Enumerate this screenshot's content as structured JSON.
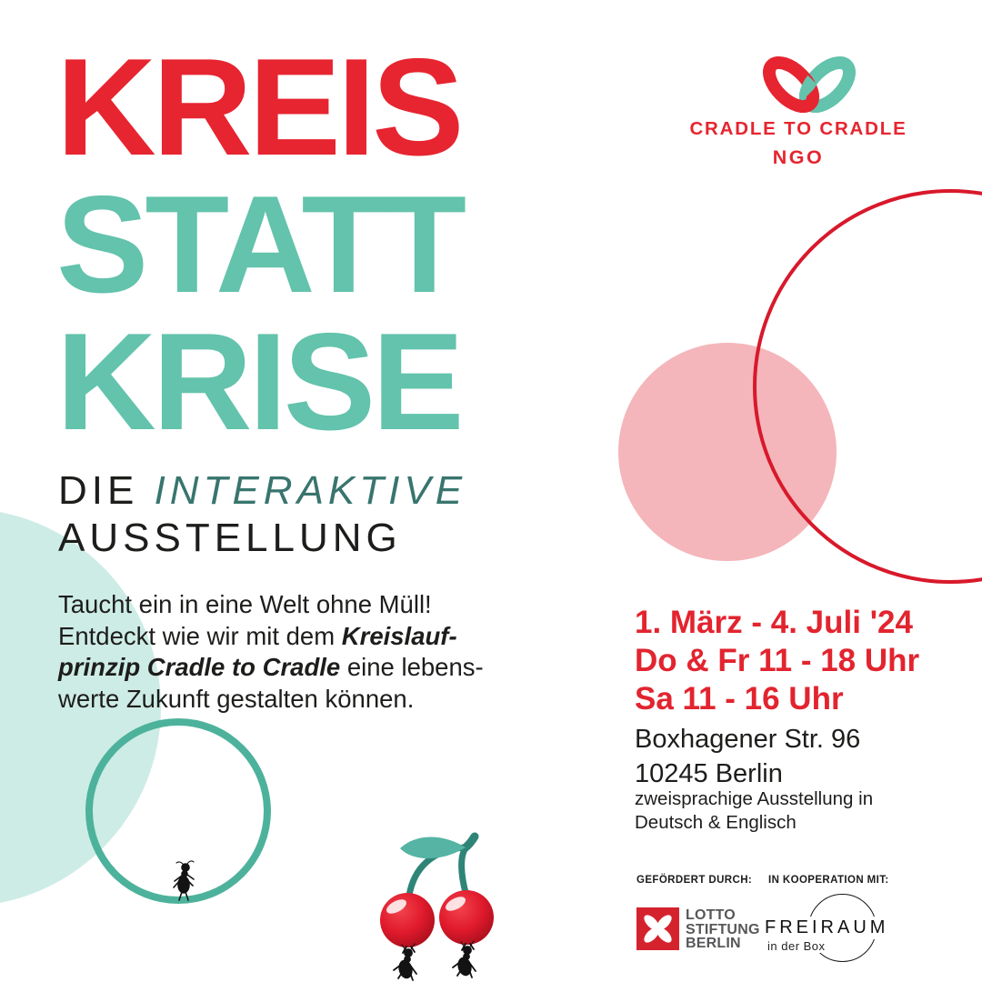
{
  "colors": {
    "red": "#e62530",
    "red-line": "#d8192b",
    "red-date": "#e2242f",
    "teal": "#63c3ac",
    "teal-dark": "#38756e",
    "teal-ring": "#4db29b",
    "mint": "#cdece5",
    "pink": "#f4b6ba",
    "ink": "#1d1d1b",
    "stem": "#2e8577",
    "leaf": "#55b4a3",
    "lotto-red": "#d5232e",
    "lotto-gray": "#57575a"
  },
  "title": {
    "line1": "KREIS",
    "line2": "STATT",
    "line3": "KRISE"
  },
  "subtitle": {
    "word1": "DIE ",
    "word2": "INTERAKTIVE",
    "line2": "AUSSTELLUNG"
  },
  "intro": {
    "lines": [
      [
        {
          "t": "Taucht ein in eine Welt ohne Müll!"
        }
      ],
      [
        {
          "t": "Entdeckt wie wir mit dem "
        },
        {
          "t": "Kreislauf-",
          "em": true
        }
      ],
      [
        {
          "t": "prinzip Cradle to Cradle",
          "em": true
        },
        {
          "t": " eine lebens-"
        }
      ],
      [
        {
          "t": "werte Zukunft gestalten können."
        }
      ]
    ]
  },
  "logo": {
    "name": "CRADLE TO CRADLE",
    "ngo": "NGO"
  },
  "event": {
    "dates": [
      "1. März - 4. Juli '24",
      "Do & Fr 11 - 18 Uhr",
      "Sa 11 - 16 Uhr"
    ],
    "address": [
      "Boxhagener Str. 96",
      "10245 Berlin"
    ],
    "note": [
      "zweisprachige Ausstellung in",
      "Deutsch & Englisch"
    ]
  },
  "partners": {
    "funded_label": "GEFÖRDERT DURCH:",
    "coop_label": "IN KOOPERATION MIT:",
    "lotto_lines": [
      "LOTTO",
      "STIFTUNG",
      "BERLIN"
    ],
    "freiraum_name": "FREIRAUM",
    "freiraum_sub": "in der Box"
  }
}
